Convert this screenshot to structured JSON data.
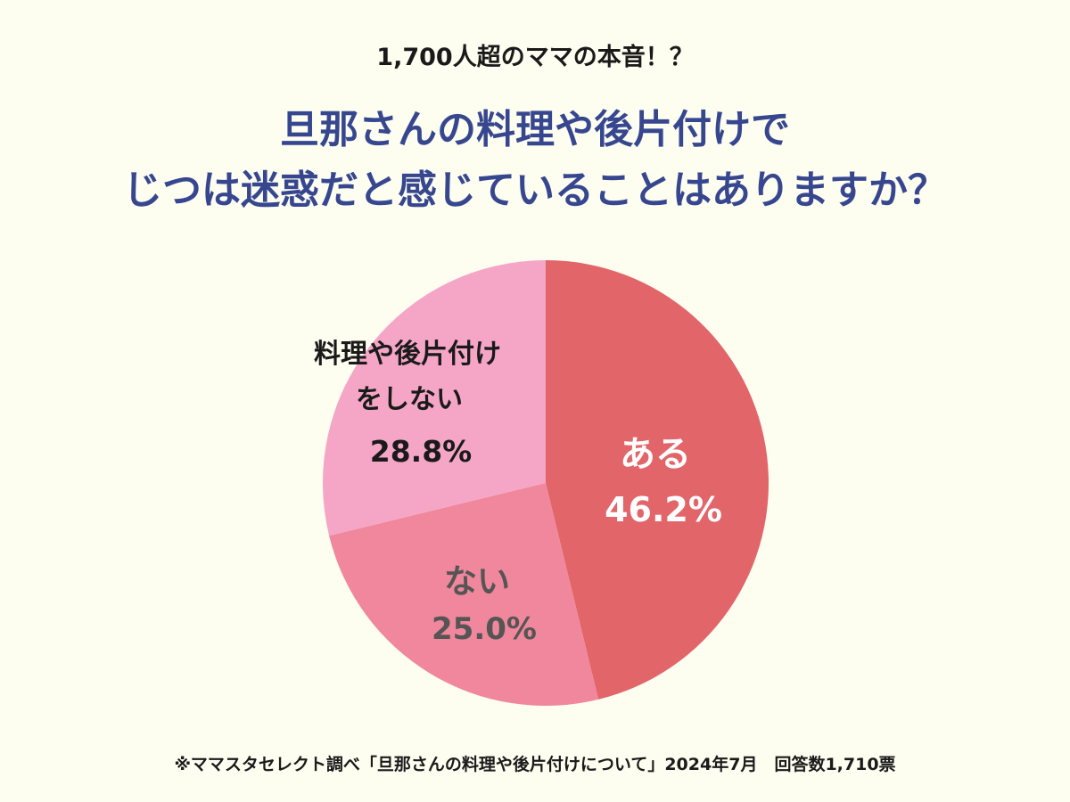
{
  "header": {
    "subtitle": "1,700人超のママの本音！？",
    "title_line1": "旦那さんの料理や後片付けで",
    "title_line2": "じつは迷惑だと感じていることはありますか？"
  },
  "chart_data": {
    "type": "pie",
    "start_angle_deg": 0,
    "direction": "clockwise",
    "slices": [
      {
        "label": "ある",
        "value": 46.2,
        "value_label": "46.2%",
        "color": "#e2656a",
        "text_color": "#ffffff"
      },
      {
        "label": "ない",
        "value": 25.0,
        "value_label": "25.0%",
        "color": "#f0879c",
        "text_color": "#555555"
      },
      {
        "label_line1": "料理や後片付け",
        "label_line2": "をしない",
        "value": 28.8,
        "value_label": "28.8%",
        "color": "#f5a6c6",
        "text_color": "#1a1a1a"
      }
    ]
  },
  "footnote": "※ママスタセレクト調べ「旦那さんの料理や後片付けについて」2024年7月　回答数1,710票"
}
